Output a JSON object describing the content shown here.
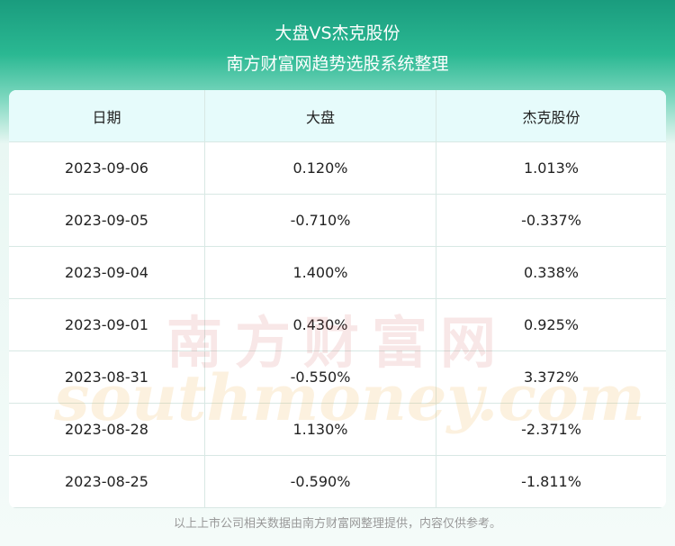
{
  "header": {
    "title": "大盘VS杰克股份",
    "subtitle": "南方财富网趋势选股系统整理"
  },
  "table": {
    "columns": [
      "日期",
      "大盘",
      "杰克股份"
    ],
    "rows": [
      [
        "2023-09-06",
        "0.120%",
        "1.013%"
      ],
      [
        "2023-09-05",
        "-0.710%",
        "-0.337%"
      ],
      [
        "2023-09-04",
        "1.400%",
        "0.338%"
      ],
      [
        "2023-09-01",
        "0.430%",
        "0.925%"
      ],
      [
        "2023-08-31",
        "-0.550%",
        "3.372%"
      ],
      [
        "2023-08-28",
        "1.130%",
        "-2.371%"
      ],
      [
        "2023-08-25",
        "-0.590%",
        "-1.811%"
      ]
    ]
  },
  "watermark": {
    "cn": "南方财富网",
    "en": "southmoney.com"
  },
  "footer": "以上上市公司相关数据由南方财富网整理提供，内容仅供参考。"
}
